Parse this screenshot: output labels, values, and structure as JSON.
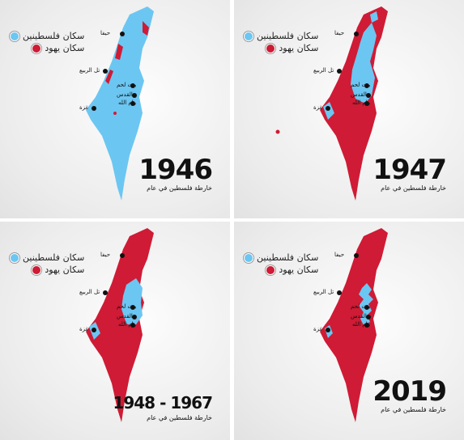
{
  "legend": {
    "palestinians": "سكان فلسطينين",
    "jews": "سكان يهود"
  },
  "colors": {
    "palestinian": "#6cc6f2",
    "jewish": "#cf1b35"
  },
  "subtitle": "خارطة فلسطين في عام",
  "cities": {
    "haifa": "حيفا",
    "tel_aviv": "تل الربيع",
    "bethlehem": "بيت لحم",
    "jerusalem": "القدس",
    "ramallah": "رام الله",
    "gaza": "غزة"
  },
  "panels": [
    {
      "year": "1946"
    },
    {
      "year": "1947"
    },
    {
      "year": "1948 - 1967"
    },
    {
      "year": "2019"
    }
  ]
}
